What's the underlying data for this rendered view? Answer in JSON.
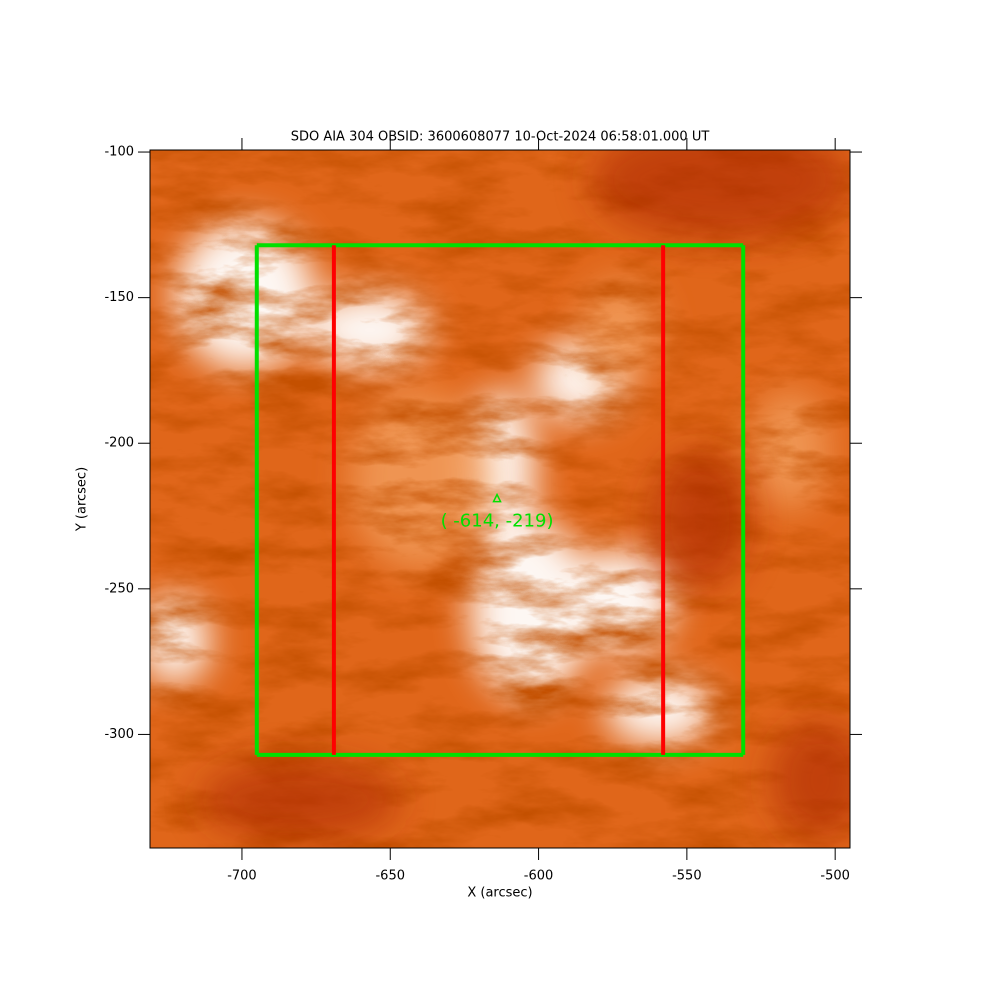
{
  "chart_data": {
    "type": "image",
    "title": "SDO AIA  304 OBSID: 3600608077 10-Oct-2024 06:58:01.000 UT",
    "x_label": "X (arcsec)",
    "y_label": "Y (arcsec)",
    "xlim": [
      -731,
      -495
    ],
    "ylim": [
      -339,
      -99.3
    ],
    "xticks": [
      -700,
      -650,
      -600,
      -550,
      -500
    ],
    "yticks": [
      -300,
      -250,
      -200,
      -150,
      -100
    ],
    "box": {
      "x": [
        -695,
        -531
      ],
      "y": [
        -307,
        -132
      ],
      "color": "#00e000"
    },
    "slits": {
      "x": [
        -669,
        -558
      ],
      "color": "#ff0000"
    },
    "marker": {
      "x": -614,
      "y": -219,
      "label": "( -614, -219)",
      "color": "#00e000"
    }
  }
}
